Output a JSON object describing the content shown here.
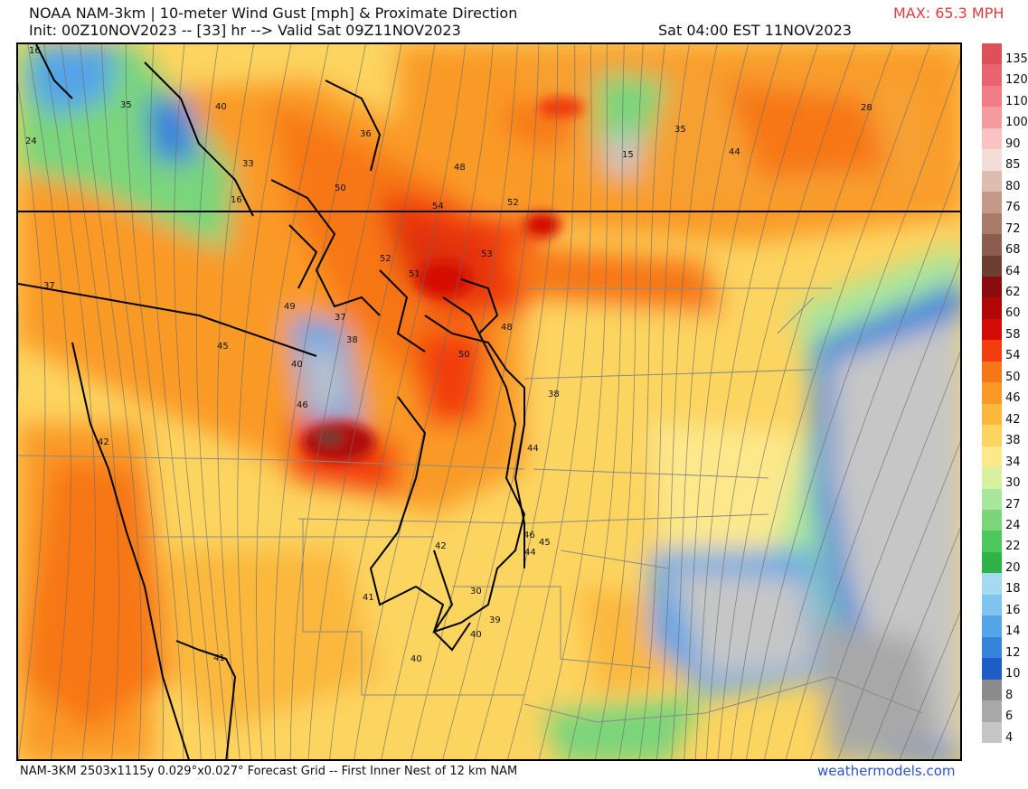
{
  "header": {
    "title_line1": "NOAA NAM-3km | 10-meter Wind Gust [mph] & Proximate Direction",
    "title_line2": "Init: 00Z10NOV2023 -- [33] hr --> Valid Sat 09Z11NOV2023",
    "valid_local": "Sat 04:00 EST 11NOV2023",
    "max_value": "MAX: 65.3 MPH"
  },
  "footer": {
    "grid_info": "NAM-3KM 2503x1115y 0.029°x0.027° Forecast Grid -- First Inner Nest of 12 km NAM",
    "brand": "weathermodels.com"
  },
  "colorbar": {
    "ticks": [
      "135",
      "120",
      "110",
      "100",
      "90",
      "85",
      "80",
      "76",
      "72",
      "68",
      "64",
      "62",
      "60",
      "58",
      "54",
      "50",
      "46",
      "42",
      "38",
      "34",
      "30",
      "27",
      "24",
      "22",
      "20",
      "18",
      "16",
      "14",
      "12",
      "10",
      "8",
      "6",
      "4"
    ],
    "colors": [
      "#e0505a",
      "#e86470",
      "#f07d86",
      "#f59ba0",
      "#fbc2c2",
      "#f2ddd8",
      "#ddbdb0",
      "#c4998a",
      "#a87a6a",
      "#8c5c4e",
      "#6e3e33",
      "#8a0c0c",
      "#b00808",
      "#d40b06",
      "#f23d10",
      "#f77718",
      "#fa9a26",
      "#fbb83c",
      "#fcd460",
      "#fde88c",
      "#d6f2a0",
      "#a7e69c",
      "#7ad57b",
      "#4cc95a",
      "#2fb24a",
      "#a6daf2",
      "#7fc3ef",
      "#55a4e8",
      "#3783dc",
      "#1f5cc8",
      "#8c8c8c",
      "#a8a8a8",
      "#c6c6c6"
    ]
  },
  "map": {
    "contour_labels": [
      "35",
      "40",
      "24",
      "33",
      "16",
      "36",
      "48",
      "50",
      "54",
      "52",
      "53",
      "35",
      "44",
      "28",
      "15",
      "37",
      "52",
      "51",
      "49",
      "37",
      "38",
      "45",
      "48",
      "40",
      "50",
      "38",
      "46",
      "44",
      "42",
      "42",
      "45",
      "46",
      "44",
      "41",
      "30",
      "39",
      "40",
      "40",
      "41",
      "16"
    ]
  }
}
